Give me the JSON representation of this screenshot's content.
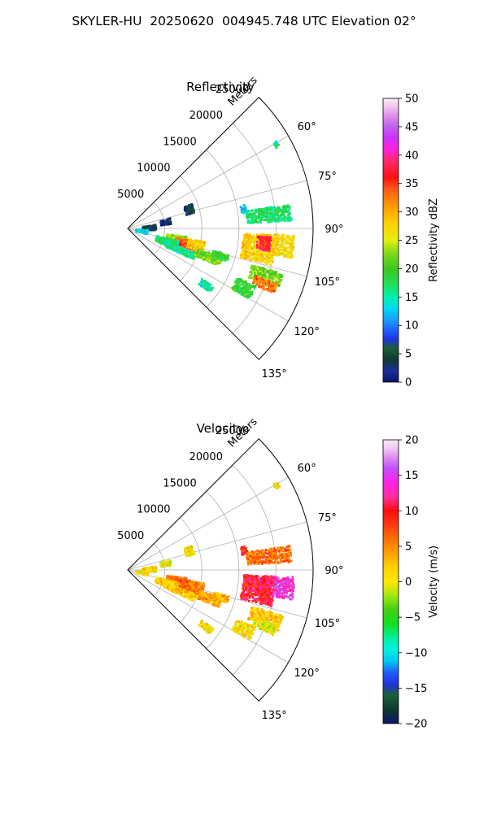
{
  "suptitle": "SKYLER-HU  20250620  004945.748 UTC Elevation 02°",
  "chart_data": [
    {
      "type": "heatmap",
      "subtype": "radar-ppi-sector",
      "title": "Reflectivity",
      "radial_label": "Meters",
      "azimuth_range_deg": [
        45,
        135
      ],
      "range_max_m": 25000,
      "range_ticks": [
        5000,
        10000,
        15000,
        20000,
        25000
      ],
      "range_tick_labels": [
        "5000",
        "10000",
        "15000",
        "20000",
        "25000"
      ],
      "azimuth_ticks": [
        60,
        75,
        90,
        105,
        120,
        135
      ],
      "azimuth_tick_labels": [
        "60°",
        "75°",
        "90°",
        "105°",
        "120°",
        "135°"
      ],
      "grid": true,
      "colorbar": {
        "label": "Reflectivity dBZ",
        "min": 0,
        "max": 50,
        "ticks": [
          0,
          5,
          10,
          15,
          20,
          25,
          30,
          35,
          40,
          45,
          50
        ],
        "tick_labels": [
          "0",
          "5",
          "10",
          "15",
          "20",
          "25",
          "30",
          "35",
          "40",
          "45",
          "50"
        ]
      },
      "echoes": [
        {
          "az": 72,
          "r": 8600,
          "dr": 600,
          "da": 4,
          "value": 3
        },
        {
          "az": 79,
          "r": 5100,
          "dr": 700,
          "da": 4,
          "value": 2
        },
        {
          "az": 86,
          "r": 2800,
          "dr": 900,
          "da": 6,
          "value": 4
        },
        {
          "az": 98,
          "r": 1800,
          "dr": 800,
          "da": 6,
          "value": 13
        },
        {
          "az": 102,
          "r": 6600,
          "dr": 1400,
          "da": 5,
          "value": 23
        },
        {
          "az": 104,
          "r": 8000,
          "dr": 1500,
          "da": 4,
          "value": 34
        },
        {
          "az": 103,
          "r": 9300,
          "dr": 1100,
          "da": 4,
          "value": 28
        },
        {
          "az": 108,
          "r": 5400,
          "dr": 1500,
          "da": 5,
          "value": 17
        },
        {
          "az": 112,
          "r": 7400,
          "dr": 2200,
          "da": 3,
          "value": 16
        },
        {
          "az": 109,
          "r": 11400,
          "dr": 1800,
          "da": 3,
          "value": 22
        },
        {
          "az": 106,
          "r": 12900,
          "dr": 1100,
          "da": 2,
          "value": 19
        },
        {
          "az": 98,
          "r": 17700,
          "dr": 2200,
          "da": 6,
          "value": 28
        },
        {
          "az": 96,
          "r": 18300,
          "dr": 900,
          "da": 3,
          "value": 37
        },
        {
          "az": 96,
          "r": 21000,
          "dr": 1400,
          "da": 4,
          "value": 27
        },
        {
          "az": 84,
          "r": 19000,
          "dr": 3000,
          "da": 3,
          "value": 17
        },
        {
          "az": 109,
          "r": 19500,
          "dr": 2200,
          "da": 3,
          "value": 22
        },
        {
          "az": 112,
          "r": 19800,
          "dr": 1600,
          "da": 2,
          "value": 33
        },
        {
          "az": 117,
          "r": 17400,
          "dr": 1400,
          "da": 3,
          "value": 19
        },
        {
          "az": 126,
          "r": 12900,
          "dr": 1000,
          "da": 2,
          "value": 15
        },
        {
          "az": 60,
          "r": 23000,
          "dr": 300,
          "da": 1,
          "value": 16
        },
        {
          "az": 80,
          "r": 15800,
          "dr": 400,
          "da": 2,
          "value": 13
        }
      ]
    },
    {
      "type": "heatmap",
      "subtype": "radar-ppi-sector",
      "title": "Velocity",
      "radial_label": "Meters",
      "azimuth_range_deg": [
        45,
        135
      ],
      "range_max_m": 25000,
      "range_ticks": [
        5000,
        10000,
        15000,
        20000,
        25000
      ],
      "range_tick_labels": [
        "5000",
        "10000",
        "15000",
        "20000",
        "25000"
      ],
      "azimuth_ticks": [
        60,
        75,
        90,
        105,
        120,
        135
      ],
      "azimuth_tick_labels": [
        "60°",
        "75°",
        "90°",
        "105°",
        "120°",
        "135°"
      ],
      "grid": true,
      "colorbar": {
        "label": "Velocity (m/s)",
        "min": -20,
        "max": 20,
        "ticks": [
          -20,
          -15,
          -10,
          -5,
          0,
          5,
          10,
          15,
          20
        ],
        "tick_labels": [
          "−20",
          "−15",
          "−10",
          "−5",
          "0",
          "5",
          "10",
          "15",
          "20"
        ]
      },
      "echoes": [
        {
          "az": 72,
          "r": 8600,
          "dr": 600,
          "da": 4,
          "value": 1
        },
        {
          "az": 79,
          "r": 5100,
          "dr": 700,
          "da": 4,
          "value": 0
        },
        {
          "az": 86,
          "r": 2800,
          "dr": 900,
          "da": 6,
          "value": 1
        },
        {
          "az": 98,
          "r": 1800,
          "dr": 800,
          "da": 6,
          "value": 1
        },
        {
          "az": 102,
          "r": 6600,
          "dr": 1400,
          "da": 5,
          "value": 6
        },
        {
          "az": 104,
          "r": 8000,
          "dr": 1500,
          "da": 4,
          "value": 7
        },
        {
          "az": 103,
          "r": 9300,
          "dr": 1100,
          "da": 4,
          "value": 5
        },
        {
          "az": 108,
          "r": 5400,
          "dr": 1500,
          "da": 5,
          "value": 2
        },
        {
          "az": 112,
          "r": 7400,
          "dr": 2200,
          "da": 3,
          "value": 2
        },
        {
          "az": 109,
          "r": 11400,
          "dr": 1800,
          "da": 3,
          "value": 4
        },
        {
          "az": 106,
          "r": 12900,
          "dr": 1100,
          "da": 2,
          "value": 3
        },
        {
          "az": 98,
          "r": 17700,
          "dr": 2200,
          "da": 6,
          "value": 10
        },
        {
          "az": 96,
          "r": 18300,
          "dr": 900,
          "da": 3,
          "value": 11
        },
        {
          "az": 96,
          "r": 21000,
          "dr": 1400,
          "da": 4,
          "value": 14
        },
        {
          "az": 84,
          "r": 19000,
          "dr": 3000,
          "da": 3,
          "value": 6
        },
        {
          "az": 109,
          "r": 19500,
          "dr": 2200,
          "da": 3,
          "value": 2
        },
        {
          "az": 112,
          "r": 19800,
          "dr": 1600,
          "da": 2,
          "value": 0
        },
        {
          "az": 117,
          "r": 17400,
          "dr": 1400,
          "da": 3,
          "value": 1
        },
        {
          "az": 126,
          "r": 12900,
          "dr": 1000,
          "da": 2,
          "value": 1
        },
        {
          "az": 60,
          "r": 23000,
          "dr": 300,
          "da": 1,
          "value": 1
        },
        {
          "az": 80,
          "r": 15800,
          "dr": 400,
          "da": 2,
          "value": 9
        }
      ]
    }
  ]
}
